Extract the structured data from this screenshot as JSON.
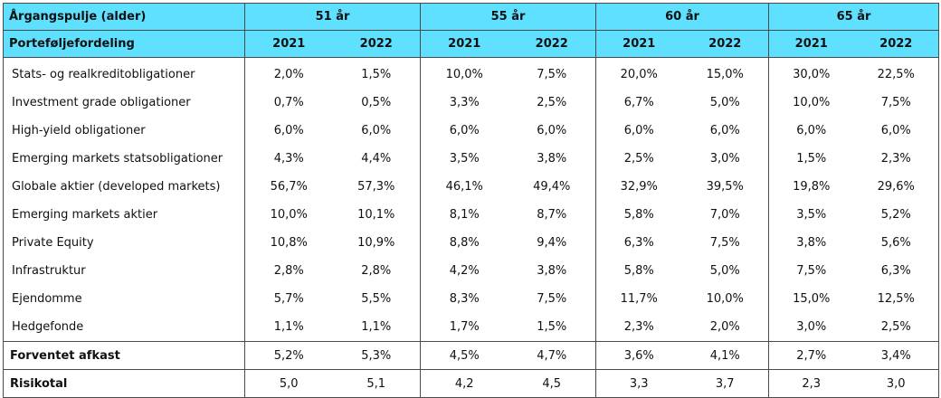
{
  "header": {
    "col0_title": "Årgangspulje (alder)",
    "groups": [
      "51 år",
      "55 år",
      "60 år",
      "65 år"
    ],
    "section_title": "Porteføljefordeling",
    "years": [
      "2021",
      "2022"
    ]
  },
  "rows": [
    {
      "label": "Stats- og realkreditobligationer",
      "values": [
        "2,0%",
        "1,5%",
        "10,0%",
        "7,5%",
        "20,0%",
        "15,0%",
        "30,0%",
        "22,5%"
      ]
    },
    {
      "label": "Investment grade obligationer",
      "values": [
        "0,7%",
        "0,5%",
        "3,3%",
        "2,5%",
        "6,7%",
        "5,0%",
        "10,0%",
        "7,5%"
      ]
    },
    {
      "label": "High-yield obligationer",
      "values": [
        "6,0%",
        "6,0%",
        "6,0%",
        "6,0%",
        "6,0%",
        "6,0%",
        "6,0%",
        "6,0%"
      ]
    },
    {
      "label": "Emerging markets statsobligationer",
      "values": [
        "4,3%",
        "4,4%",
        "3,5%",
        "3,8%",
        "2,5%",
        "3,0%",
        "1,5%",
        "2,3%"
      ]
    },
    {
      "label": "Globale aktier (developed markets)",
      "values": [
        "56,7%",
        "57,3%",
        "46,1%",
        "49,4%",
        "32,9%",
        "39,5%",
        "19,8%",
        "29,6%"
      ]
    },
    {
      "label": "Emerging markets aktier",
      "values": [
        "10,0%",
        "10,1%",
        "8,1%",
        "8,7%",
        "5,8%",
        "7,0%",
        "3,5%",
        "5,2%"
      ]
    },
    {
      "label": "Private Equity",
      "values": [
        "10,8%",
        "10,9%",
        "8,8%",
        "9,4%",
        "6,3%",
        "7,5%",
        "3,8%",
        "5,6%"
      ]
    },
    {
      "label": "Infrastruktur",
      "values": [
        "2,8%",
        "2,8%",
        "4,2%",
        "3,8%",
        "5,8%",
        "5,0%",
        "7,5%",
        "6,3%"
      ]
    },
    {
      "label": "Ejendomme",
      "values": [
        "5,7%",
        "5,5%",
        "8,3%",
        "7,5%",
        "11,7%",
        "10,0%",
        "15,0%",
        "12,5%"
      ]
    },
    {
      "label": "Hedgefonde",
      "values": [
        "1,1%",
        "1,1%",
        "1,7%",
        "1,5%",
        "2,3%",
        "2,0%",
        "3,0%",
        "2,5%"
      ]
    }
  ],
  "summary": [
    {
      "label": "Forventet afkast",
      "values": [
        "5,2%",
        "5,3%",
        "4,5%",
        "4,7%",
        "3,6%",
        "4,1%",
        "2,7%",
        "3,4%"
      ]
    },
    {
      "label": "Risikotal",
      "values": [
        "5,0",
        "5,1",
        "4,2",
        "4,5",
        "3,3",
        "3,7",
        "2,3",
        "3,0"
      ]
    }
  ]
}
